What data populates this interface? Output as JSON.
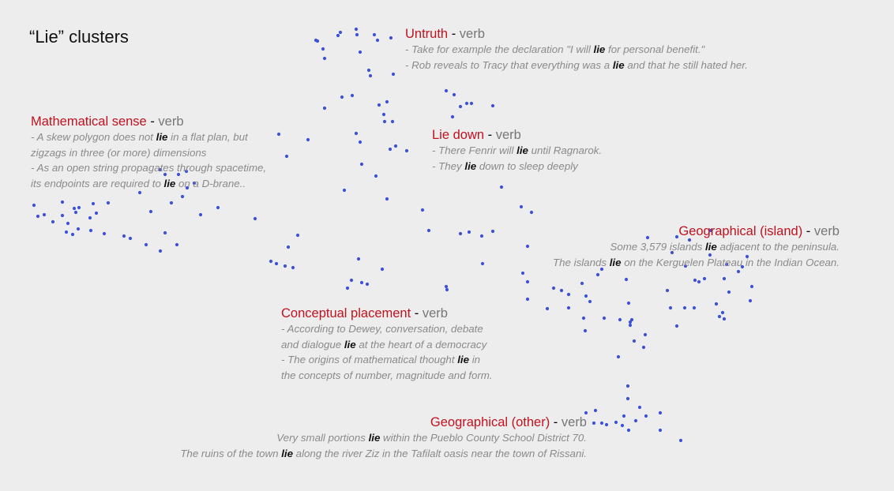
{
  "title": "“Lie” clusters",
  "keyword": "lie",
  "colors": {
    "cluster_name": "#c1121f",
    "pos": "#777777",
    "example": "#8a8a8a",
    "dot": "#3b52d9",
    "background": "#ededed"
  },
  "clusters": [
    {
      "id": "untruth",
      "name": "Untruth",
      "pos": "verb",
      "examples": [
        "- Take for example the declaration \"I will lie for personal benefit.\"",
        "- Rob reveals to Tracy that everything was a lie and that he still hated her."
      ]
    },
    {
      "id": "mathematical",
      "name": "Mathematical sense",
      "pos": "verb",
      "examples": [
        "- A skew polygon does not lie in a flat plan, but",
        "zigzags in three (or more) dimensions",
        "- As an open string propagates through spacetime,",
        "its endpoints are required to lie on a D-brane.."
      ]
    },
    {
      "id": "lie-down",
      "name": "Lie down",
      "pos": "verb",
      "examples": [
        "- There Fenrir will lie until Ragnarok.",
        "- They lie down to sleep deeply"
      ]
    },
    {
      "id": "geo-island",
      "name": "Geographical (island)",
      "pos": "verb",
      "examples": [
        "Some 3,579 islands lie adjacent to the peninsula.",
        "The islands lie on the Kerguelen Plateau in the Indian Ocean."
      ]
    },
    {
      "id": "conceptual",
      "name": "Conceptual placement",
      "pos": "verb",
      "examples": [
        "- According to Dewey, conversation, debate",
        "and dialogue lie at the heart of a democracy",
        "- The origins of mathematical thought lie in",
        "the concepts of number, magnitude and form."
      ]
    },
    {
      "id": "geo-other",
      "name": "Geographical (other)",
      "pos": "verb",
      "examples": [
        "Very small portions lie within the Pueblo County School District 70.",
        "The ruins of the town lie along the river Ziz in the Tafilalt oasis near the town of Rissani."
      ]
    }
  ]
}
